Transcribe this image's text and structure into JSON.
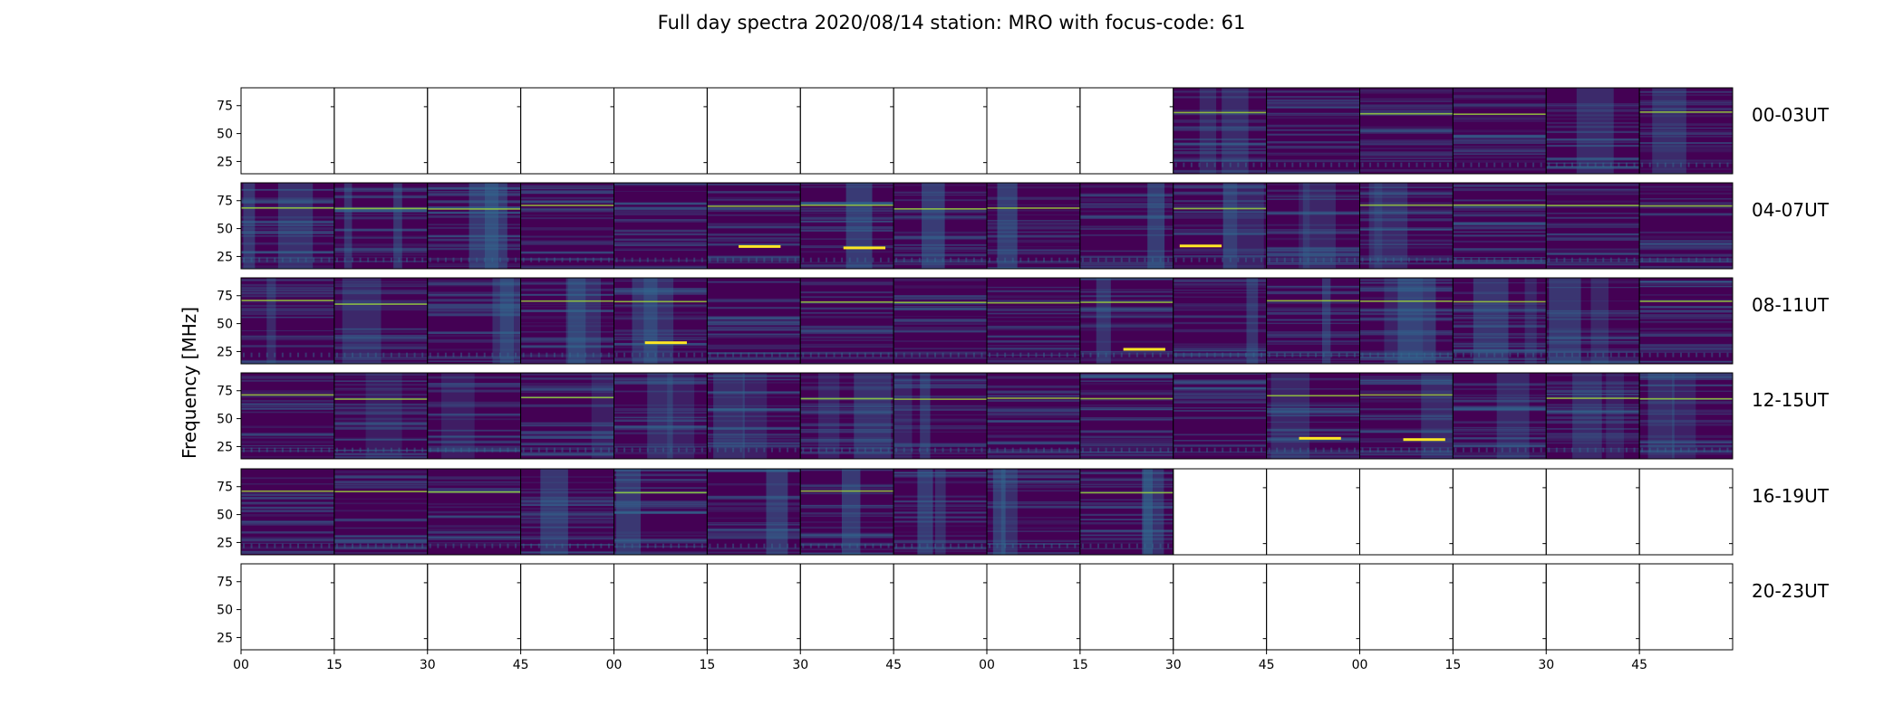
{
  "chart_data": {
    "type": "heatmap",
    "title": "Full day spectra 2020/08/14 station: MRO with focus-code: 61",
    "ylabel": "Frequency [MHz]",
    "xlabel": "",
    "ylim": [
      14,
      91
    ],
    "yticks": [
      25,
      50,
      75
    ],
    "x_tick_labels": [
      "00",
      "15",
      "30",
      "45",
      "00",
      "15",
      "30",
      "45",
      "00",
      "15",
      "30",
      "45",
      "00",
      "15",
      "30",
      "45"
    ],
    "panels_per_row": 16,
    "panel_minutes": 15,
    "rows": [
      {
        "label": "00-03UT",
        "data_from": 10,
        "data_to": 16
      },
      {
        "label": "04-07UT",
        "data_from": 0,
        "data_to": 16
      },
      {
        "label": "08-11UT",
        "data_from": 0,
        "data_to": 16
      },
      {
        "label": "12-15UT",
        "data_from": 0,
        "data_to": 16
      },
      {
        "label": "16-19UT",
        "data_from": 0,
        "data_to": 10
      },
      {
        "label": "20-23UT",
        "data_from": 0,
        "data_to": 0
      }
    ],
    "colormap": {
      "name": "viridis",
      "low": "#440154",
      "mid": "#31688e",
      "high": "#fde725"
    },
    "grid": false,
    "legend": "none"
  }
}
